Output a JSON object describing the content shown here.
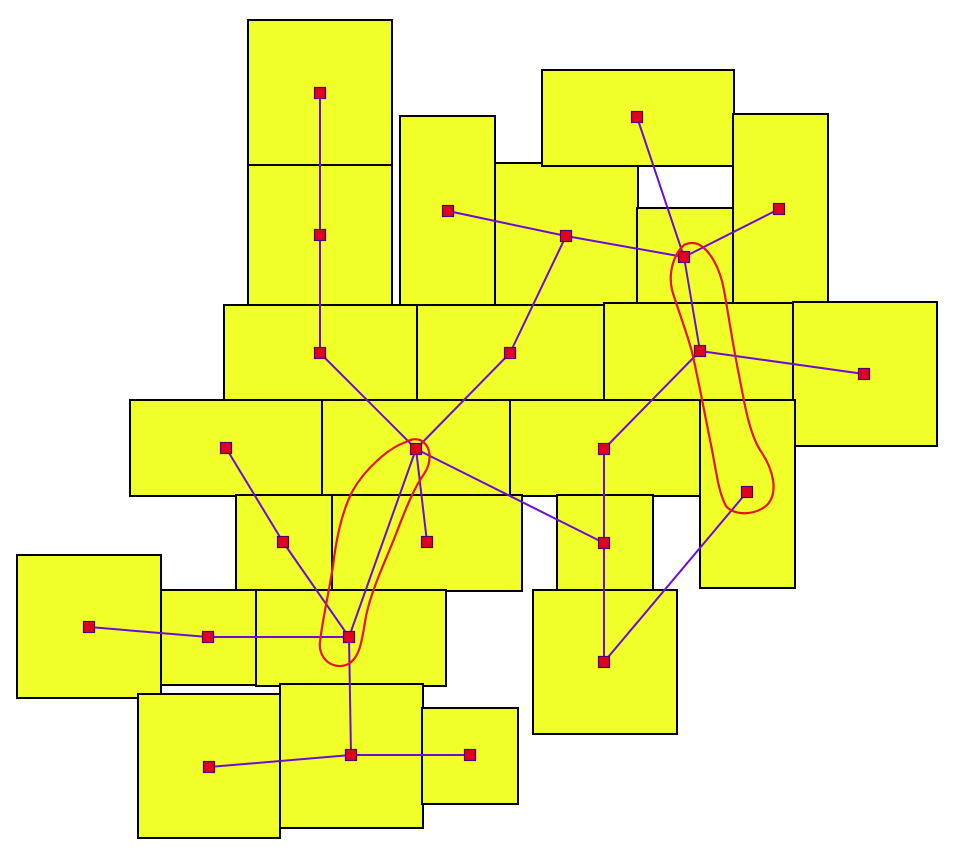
{
  "colors": {
    "box_fill": "#f0ff2a",
    "box_stroke": "#000000",
    "edge": "#6a0dd6",
    "node_fill": "#e00020",
    "node_stroke": "#4a007a",
    "annotation": "#e8121e"
  },
  "boxes": [
    {
      "id": "b01"
    },
    {
      "id": "b02"
    },
    {
      "id": "b03"
    },
    {
      "id": "b04"
    },
    {
      "id": "b05"
    },
    {
      "id": "b06"
    },
    {
      "id": "b07"
    },
    {
      "id": "b08"
    },
    {
      "id": "b09"
    },
    {
      "id": "b10"
    },
    {
      "id": "b11"
    },
    {
      "id": "b12"
    },
    {
      "id": "b13"
    },
    {
      "id": "b14"
    },
    {
      "id": "b15"
    },
    {
      "id": "b16"
    },
    {
      "id": "b17"
    },
    {
      "id": "b18"
    },
    {
      "id": "b19"
    },
    {
      "id": "b20"
    },
    {
      "id": "b21"
    },
    {
      "id": "b22"
    },
    {
      "id": "b23"
    },
    {
      "id": "b24"
    },
    {
      "id": "b25"
    },
    {
      "id": "b26"
    },
    {
      "id": "b27"
    },
    {
      "id": "b28"
    },
    {
      "id": "b29"
    }
  ],
  "nodes": [
    {
      "id": "n01"
    },
    {
      "id": "n02"
    },
    {
      "id": "n03"
    },
    {
      "id": "n04"
    },
    {
      "id": "n05"
    },
    {
      "id": "n06"
    },
    {
      "id": "n07"
    },
    {
      "id": "n08"
    },
    {
      "id": "n09"
    },
    {
      "id": "n10"
    },
    {
      "id": "n11"
    },
    {
      "id": "n12"
    },
    {
      "id": "n13"
    },
    {
      "id": "n14"
    },
    {
      "id": "n15"
    },
    {
      "id": "n16"
    },
    {
      "id": "n17"
    },
    {
      "id": "n18"
    },
    {
      "id": "n19"
    },
    {
      "id": "n20"
    },
    {
      "id": "n21"
    },
    {
      "id": "n22"
    },
    {
      "id": "n23"
    },
    {
      "id": "n24"
    },
    {
      "id": "n25"
    },
    {
      "id": "n26"
    },
    {
      "id": "n27"
    }
  ],
  "edges": [
    {
      "from": "n01",
      "to": "n02"
    },
    {
      "from": "n02",
      "to": "n03"
    },
    {
      "from": "n03",
      "to": "n04"
    },
    {
      "from": "n05",
      "to": "n06"
    },
    {
      "from": "n06",
      "to": "n07"
    },
    {
      "from": "n07",
      "to": "n04"
    },
    {
      "from": "n08",
      "to": "n09"
    },
    {
      "from": "n10",
      "to": "n09"
    },
    {
      "from": "n06",
      "to": "n09"
    },
    {
      "from": "n09",
      "to": "n11"
    },
    {
      "from": "n11",
      "to": "n12"
    },
    {
      "from": "n11",
      "to": "n13"
    },
    {
      "from": "n13",
      "to": "n14"
    },
    {
      "from": "n04",
      "to": "n14"
    },
    {
      "from": "n14",
      "to": "n15"
    },
    {
      "from": "n15",
      "to": "n16"
    },
    {
      "from": "n04",
      "to": "n17"
    },
    {
      "from": "n18",
      "to": "n19"
    },
    {
      "from": "n19",
      "to": "n20"
    },
    {
      "from": "n04",
      "to": "n20"
    },
    {
      "from": "n22",
      "to": "n21"
    },
    {
      "from": "n21",
      "to": "n20"
    },
    {
      "from": "n20",
      "to": "n23"
    },
    {
      "from": "n24",
      "to": "n23"
    },
    {
      "from": "n23",
      "to": "n25"
    },
    {
      "from": "n04",
      "to": "n26"
    },
    {
      "from": "n26",
      "to": "n27"
    }
  ],
  "annotations": [
    {
      "id": "loop-left"
    },
    {
      "id": "loop-right"
    }
  ]
}
